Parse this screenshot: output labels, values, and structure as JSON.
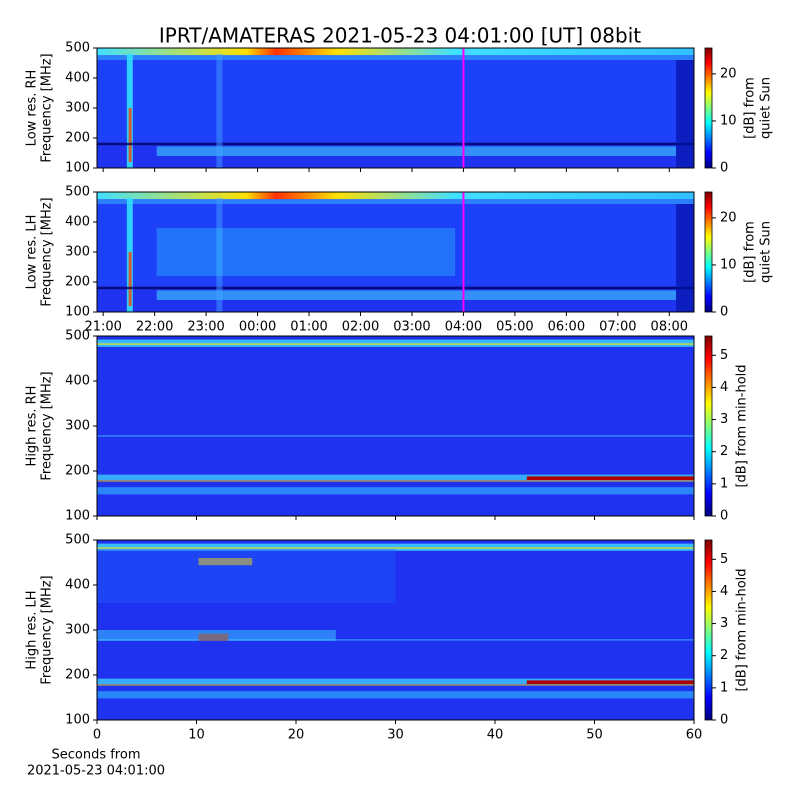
{
  "chart_data": [
    {
      "type": "heatmap",
      "title": "IPRT/AMATERAS 2021-05-23 04:01:00 [UT]   08bit",
      "ylabel": [
        "Low res. RH",
        "Frequency [MHz]"
      ],
      "ylim": [
        100,
        500
      ],
      "yticks": [
        100,
        200,
        300,
        400,
        500
      ],
      "xlim": [
        -0.12,
        11.48
      ],
      "xticks": [
        0,
        1,
        2,
        3,
        4,
        5,
        6,
        7,
        8,
        9,
        10,
        11
      ],
      "marker_x": 7,
      "marker_color": "#ff00ff",
      "colorbar_label": [
        "[dB] from",
        "quiet Sun"
      ],
      "clim": [
        0,
        25.5
      ],
      "cticks": [
        0,
        10,
        20
      ],
      "colormap": "jet"
    },
    {
      "type": "heatmap",
      "ylabel": [
        "Low res. LH",
        "Frequency [MHz]"
      ],
      "ylim": [
        100,
        500
      ],
      "yticks": [
        100,
        200,
        300,
        400,
        500
      ],
      "xlim": [
        -0.12,
        11.48
      ],
      "xticks": [
        {
          "value": 0,
          "label": "21:00"
        },
        {
          "value": 1,
          "label": "22:00"
        },
        {
          "value": 2,
          "label": "23:00"
        },
        {
          "value": 3,
          "label": "00:00"
        },
        {
          "value": 4,
          "label": "01:00"
        },
        {
          "value": 5,
          "label": "02:00"
        },
        {
          "value": 6,
          "label": "03:00"
        },
        {
          "value": 7,
          "label": "04:00"
        },
        {
          "value": 8,
          "label": "05:00"
        },
        {
          "value": 9,
          "label": "06:00"
        },
        {
          "value": 10,
          "label": "07:00"
        },
        {
          "value": 11,
          "label": "08:00"
        }
      ],
      "marker_x": 7,
      "marker_color": "#ff00ff",
      "colorbar_label": [
        "[dB] from",
        "quiet Sun"
      ],
      "clim": [
        0,
        25.5
      ],
      "cticks": [
        0,
        10,
        20
      ],
      "colormap": "jet"
    },
    {
      "type": "heatmap",
      "ylabel": [
        "High res. RH",
        "Frequency [MHz]"
      ],
      "ylim": [
        100,
        500
      ],
      "yticks": [
        100,
        200,
        300,
        400,
        500
      ],
      "xlim": [
        0,
        60
      ],
      "xticks": [
        0,
        10,
        20,
        30,
        40,
        50,
        60
      ],
      "colorbar_label": [
        "[dB] from min-hold"
      ],
      "clim": [
        0,
        5.6
      ],
      "cticks": [
        0,
        1,
        2,
        3,
        4,
        5
      ],
      "colormap": "jet"
    },
    {
      "type": "heatmap",
      "ylabel": [
        "High res. LH",
        "Frequency [MHz]"
      ],
      "ylim": [
        100,
        500
      ],
      "yticks": [
        100,
        200,
        300,
        400,
        500
      ],
      "xlim": [
        0,
        60
      ],
      "xticks": [
        0,
        10,
        20,
        30,
        40,
        50,
        60
      ],
      "xticklabels_shown": true,
      "xlabel": [
        "Seconds from",
        "2021-05-23 04:01:00"
      ],
      "colorbar_label": [
        "[dB] from min-hold"
      ],
      "clim": [
        0,
        5.6
      ],
      "cticks": [
        0,
        1,
        2,
        3,
        4,
        5
      ],
      "colormap": "jet"
    }
  ]
}
